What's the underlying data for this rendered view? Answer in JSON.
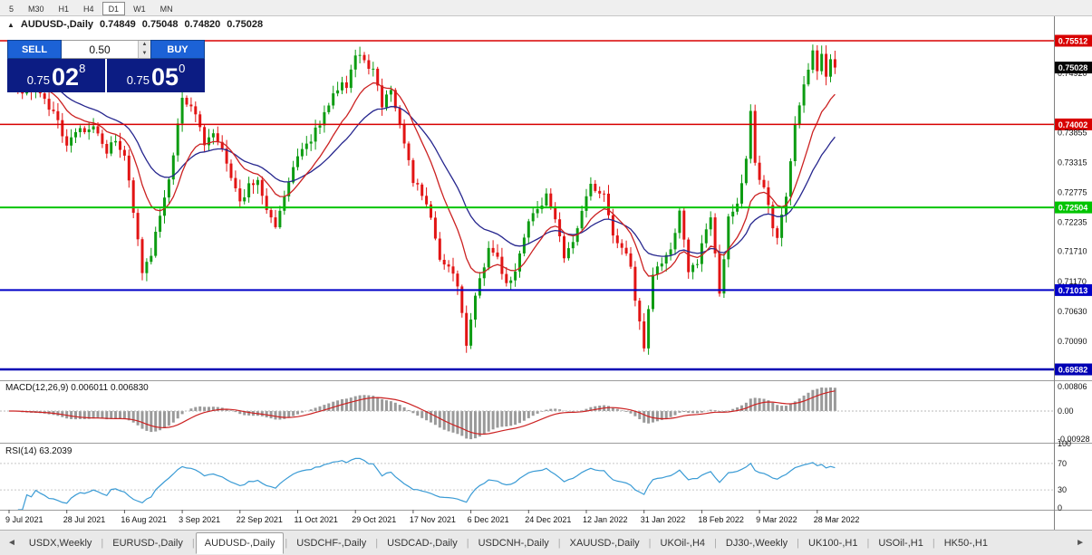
{
  "toolbar": {
    "periods": [
      {
        "label": "5",
        "active": false
      },
      {
        "label": "M30",
        "active": false
      },
      {
        "label": "H1",
        "active": false
      },
      {
        "label": "H4",
        "active": false
      },
      {
        "label": "D1",
        "active": true
      },
      {
        "label": "W1",
        "active": false
      },
      {
        "label": "MN",
        "active": false
      }
    ]
  },
  "chart_header": {
    "icon": "▲",
    "symbol": "AUDUSD-,Daily",
    "open": "0.74849",
    "high": "0.75048",
    "low": "0.74820",
    "close": "0.75028"
  },
  "trade_panel": {
    "sell_label": "SELL",
    "buy_label": "BUY",
    "volume": "0.50",
    "spin_up": "▲",
    "spin_down": "▼",
    "sell_price": {
      "small": "0.75",
      "big": "02",
      "sup": "8"
    },
    "buy_price": {
      "small": "0.75",
      "big": "05",
      "sup": "0"
    }
  },
  "indicator_labels": {
    "macd": "MACD(12,26,9) 0.006011 0.006830",
    "rsi": "RSI(14) 63.2039"
  },
  "tabbar": {
    "scroll_left": "◄",
    "scroll_right": "►",
    "tabs": [
      {
        "label": "USDX,Weekly",
        "active": false
      },
      {
        "label": "EURUSD-,Daily",
        "active": false
      },
      {
        "label": "AUDUSD-,Daily",
        "active": true
      },
      {
        "label": "USDCHF-,Daily",
        "active": false
      },
      {
        "label": "USDCAD-,Daily",
        "active": false
      },
      {
        "label": "USDCNH-,Daily",
        "active": false
      },
      {
        "label": "XAUUSD-,Daily",
        "active": false
      },
      {
        "label": "UKOil-,H4",
        "active": false
      },
      {
        "label": "DJ30-,Weekly",
        "active": false
      },
      {
        "label": "UK100-,H1",
        "active": false
      },
      {
        "label": "USOil-,H1",
        "active": false
      },
      {
        "label": "HK50-,H1",
        "active": false
      }
    ]
  },
  "chart_data": {
    "type": "candlestick",
    "title": "AUDUSD-,Daily",
    "n_candles": 187,
    "label_step": 13,
    "x_labels": [
      "9 Jul 2021",
      "28 Jul 2021",
      "16 Aug 2021",
      "3 Sep 2021",
      "22 Sep 2021",
      "11 Oct 2021",
      "29 Oct 2021",
      "17 Nov 2021",
      "6 Dec 2021",
      "24 Dec 2021",
      "12 Jan 2022",
      "31 Jan 2022",
      "18 Feb 2022",
      "9 Mar 2022",
      "28 Mar 2022"
    ],
    "anchors": [
      [
        0,
        0.7487
      ],
      [
        3,
        0.7452
      ],
      [
        6,
        0.747
      ],
      [
        10,
        0.7422
      ],
      [
        13,
        0.7368
      ],
      [
        16,
        0.7392
      ],
      [
        19,
        0.7398
      ],
      [
        22,
        0.7345
      ],
      [
        24,
        0.7378
      ],
      [
        26,
        0.7338
      ],
      [
        28,
        0.7248
      ],
      [
        30,
        0.7132
      ],
      [
        32,
        0.7158
      ],
      [
        34,
        0.7242
      ],
      [
        36,
        0.73
      ],
      [
        39,
        0.7452
      ],
      [
        41,
        0.7435
      ],
      [
        44,
        0.7368
      ],
      [
        46,
        0.7392
      ],
      [
        49,
        0.733
      ],
      [
        52,
        0.7258
      ],
      [
        54,
        0.7292
      ],
      [
        56,
        0.7302
      ],
      [
        58,
        0.7248
      ],
      [
        60,
        0.7222
      ],
      [
        62,
        0.7272
      ],
      [
        65,
        0.7342
      ],
      [
        68,
        0.7372
      ],
      [
        71,
        0.7418
      ],
      [
        74,
        0.7468
      ],
      [
        76,
        0.7472
      ],
      [
        78,
        0.7532
      ],
      [
        80,
        0.7515
      ],
      [
        82,
        0.7496
      ],
      [
        84,
        0.7438
      ],
      [
        86,
        0.7468
      ],
      [
        88,
        0.7398
      ],
      [
        91,
        0.7302
      ],
      [
        93,
        0.7268
      ],
      [
        95,
        0.7228
      ],
      [
        97,
        0.7152
      ],
      [
        99,
        0.7138
      ],
      [
        101,
        0.7112
      ],
      [
        103,
        0.7008
      ],
      [
        104,
        0.7052
      ],
      [
        106,
        0.7122
      ],
      [
        108,
        0.7178
      ],
      [
        110,
        0.7158
      ],
      [
        112,
        0.7108
      ],
      [
        114,
        0.7138
      ],
      [
        117,
        0.7228
      ],
      [
        119,
        0.7248
      ],
      [
        121,
        0.7268
      ],
      [
        123,
        0.7222
      ],
      [
        125,
        0.7162
      ],
      [
        127,
        0.7188
      ],
      [
        129,
        0.7252
      ],
      [
        131,
        0.7298
      ],
      [
        134,
        0.7268
      ],
      [
        136,
        0.7202
      ],
      [
        138,
        0.7182
      ],
      [
        140,
        0.7138
      ],
      [
        142,
        0.7042
      ],
      [
        143,
        0.6998
      ],
      [
        145,
        0.7128
      ],
      [
        147,
        0.7148
      ],
      [
        149,
        0.7182
      ],
      [
        151,
        0.7242
      ],
      [
        153,
        0.7132
      ],
      [
        155,
        0.7152
      ],
      [
        156,
        0.7192
      ],
      [
        158,
        0.7228
      ],
      [
        160,
        0.7098
      ],
      [
        162,
        0.7228
      ],
      [
        164,
        0.7258
      ],
      [
        166,
        0.7335
      ],
      [
        167,
        0.7428
      ],
      [
        168,
        0.7332
      ],
      [
        170,
        0.7282
      ],
      [
        172,
        0.7212
      ],
      [
        173,
        0.7188
      ],
      [
        175,
        0.7272
      ],
      [
        177,
        0.7402
      ],
      [
        179,
        0.7468
      ],
      [
        181,
        0.7532
      ],
      [
        182,
        0.7496
      ],
      [
        183,
        0.7522
      ],
      [
        184,
        0.7482
      ],
      [
        185,
        0.7521
      ],
      [
        186,
        0.75028
      ]
    ],
    "price_axis": {
      "labels": [
        "0.74920",
        "0.73855",
        "0.73315",
        "0.72775",
        "0.72235",
        "0.71710",
        "0.71170",
        "0.70630",
        "0.70090"
      ]
    },
    "levels": [
      {
        "value": 0.75512,
        "label": "0.75512",
        "color": "#d80000",
        "width": 1.5
      },
      {
        "value": 0.74002,
        "label": "0.74002",
        "color": "#d80000",
        "width": 1.5
      },
      {
        "value": 0.72504,
        "label": "0.72504",
        "color": "#00c400",
        "width": 2
      },
      {
        "value": 0.71013,
        "label": "0.71013",
        "color": "#0000c8",
        "width": 2
      },
      {
        "value": 0.69582,
        "label": "0.69582",
        "color": "#0000b4",
        "width": 2.5
      }
    ],
    "current_price": {
      "value": 0.75028,
      "label": "0.75028",
      "color": "#050505"
    },
    "overlays": [
      {
        "name": "EMA-fast",
        "period": 12,
        "color": "#cc2222"
      },
      {
        "name": "EMA-slow",
        "period": 26,
        "color": "#26268e"
      }
    ],
    "style": {
      "up": "#0d9c12",
      "down": "#e21414",
      "macd_hist": "#9a9a9a",
      "macd_signal": "#cc2222",
      "rsi": "#3a9bd5"
    },
    "indicators": [
      {
        "name": "MACD",
        "axis": [
          {
            "v": 0.00806,
            "t": "0.00806"
          },
          {
            "v": 0,
            "t": "0.00"
          },
          {
            "v": -0.00928,
            "t": "-0.00928"
          }
        ]
      },
      {
        "name": "RSI",
        "axis": [
          {
            "v": 100,
            "t": "100"
          },
          {
            "v": 70,
            "t": "70"
          },
          {
            "v": 30,
            "t": "30"
          },
          {
            "v": 0,
            "t": "0"
          }
        ],
        "levels": [
          70,
          30
        ]
      }
    ]
  }
}
